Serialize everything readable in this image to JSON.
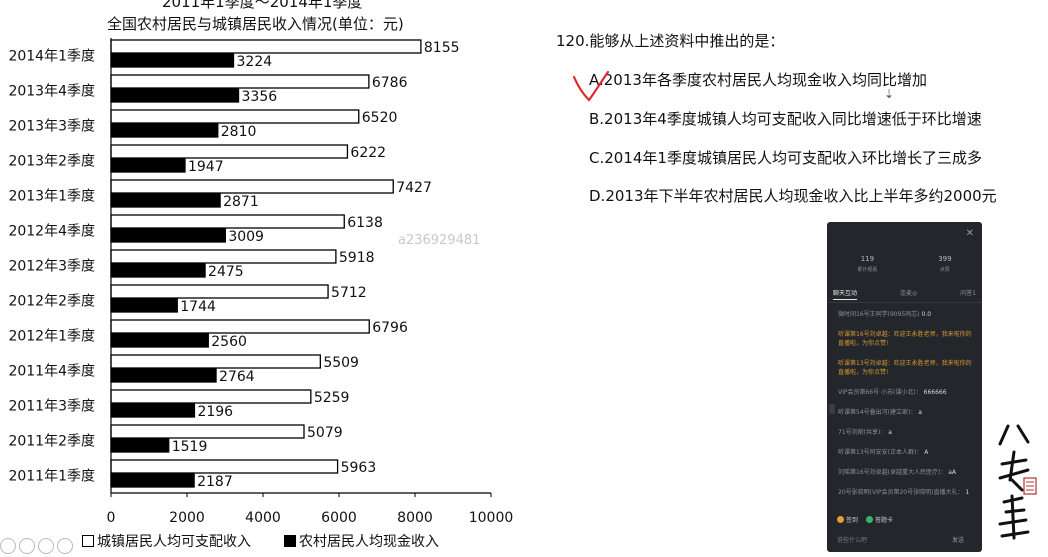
{
  "chart_data": {
    "type": "bar",
    "title_top": "2011年1季度～2014年1季度",
    "title": "全国农村居民与城镇居民收入情况(单位：元)",
    "categories": [
      "2014年1季度",
      "2013年4季度",
      "2013年3季度",
      "2013年2季度",
      "2013年1季度",
      "2012年4季度",
      "2012年3季度",
      "2012年2季度",
      "2012年1季度",
      "2011年4季度",
      "2011年3季度",
      "2011年2季度",
      "2011年1季度"
    ],
    "series": [
      {
        "name": "城镇居民人均可支配收入",
        "color": "#ffffff",
        "values": [
          8155,
          6786,
          6520,
          6222,
          7427,
          6138,
          5918,
          5712,
          6796,
          5509,
          5259,
          5079,
          5963
        ]
      },
      {
        "name": "农村居民人均现金收入",
        "color": "#000000",
        "values": [
          3224,
          3356,
          2810,
          1947,
          2871,
          3009,
          2475,
          1744,
          2560,
          2764,
          2196,
          1519,
          2187
        ]
      }
    ],
    "xlim": [
      0,
      10000
    ],
    "xticks": [
      "0",
      "2000",
      "4000",
      "6000",
      "8000",
      "10000"
    ],
    "legend_position": "bottom"
  },
  "question": {
    "title": "120.能够从上述资料中推出的是：",
    "options": [
      "A.2013年各季度农村居民人均现金收入均同比增加",
      "B.2013年4季度城镇人均可支配收入同比增速低于环比增速",
      "C.2014年1季度城镇居民人均可支配收入环比增长了三成多",
      "D.2013年下半年农村居民人均现金收入比上半年多约2000元"
    ]
  },
  "watermark": "a236929481",
  "live_panel": {
    "stats": [
      {
        "num": "119",
        "label": "累计观看"
      },
      {
        "num": "399",
        "label": "点赞"
      }
    ],
    "tabs": [
      "聊天互动",
      "连麦◎",
      "问答1"
    ],
    "messages": [
      {
        "name": "微时间16号王同学(9095同芯)",
        "text": "0.0",
        "style": "normal"
      },
      {
        "name": "听课第16号刘卓越：欢迎王永胜老师，我来啦你的直播啦，为你点赞!",
        "text": "",
        "style": "orange"
      },
      {
        "name": "听课第13号刘卓越：欢迎王永胜老师，我来啦你的直播啦，为你点赞!",
        "text": "",
        "style": "orange"
      },
      {
        "name": "VIP会员第66号 小苏(课小北)：",
        "text": "666666",
        "style": "normal"
      },
      {
        "name": "听课第54号叠出河(建立家)：",
        "text": "a",
        "style": "normal"
      },
      {
        "name": "71号刘刚(共享)：",
        "text": "a",
        "style": "normal"
      },
      {
        "name": "听课第13号阿安安(正本人群)：",
        "text": "A",
        "style": "normal"
      },
      {
        "name": "刘瑶第16号刘卓越(卓越重大人民医疗)：",
        "text": "aA",
        "style": "normal"
      },
      {
        "name": "20号张晓明(VIP会员第20号张晓明)直播大礼：",
        "text": "1",
        "style": "normal"
      }
    ],
    "buttons": [
      "签到",
      "答题卡"
    ],
    "input_placeholder": "说些什么吧",
    "send_label": "发送"
  }
}
